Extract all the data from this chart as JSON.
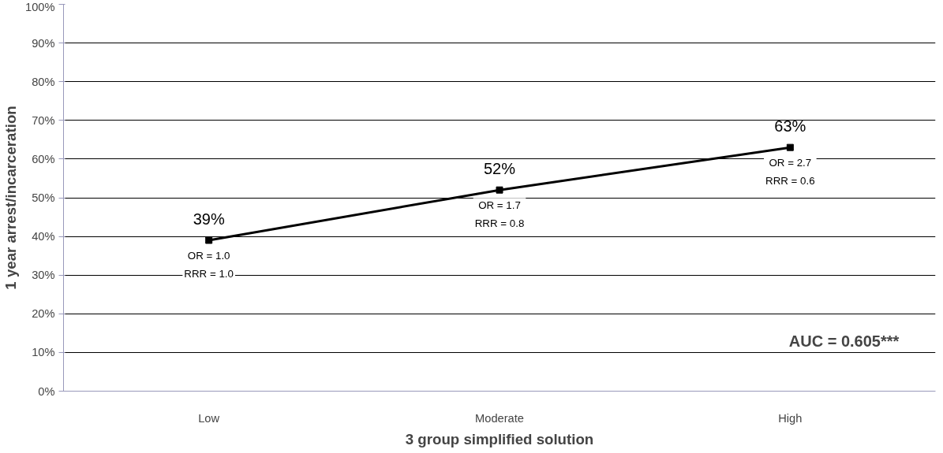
{
  "chart_data": {
    "type": "line",
    "xlabel": "3 group simplified solution",
    "ylabel": "1 year arrest/incarceration",
    "categories": [
      "Low",
      "Moderate",
      "High"
    ],
    "series": [
      {
        "color": "#000000",
        "values": [
          39,
          52,
          63
        ],
        "value_labels": [
          "39%",
          "52%",
          "63%"
        ]
      }
    ],
    "ylim": [
      0,
      100
    ],
    "yticks": [
      {
        "value": 0,
        "label": "0%"
      },
      {
        "value": 10,
        "label": "10%"
      },
      {
        "value": 20,
        "label": "20%"
      },
      {
        "value": 30,
        "label": "30%"
      },
      {
        "value": 40,
        "label": "40%"
      },
      {
        "value": 50,
        "label": "50%"
      },
      {
        "value": 60,
        "label": "60%"
      },
      {
        "value": 70,
        "label": "70%"
      },
      {
        "value": 80,
        "label": "80%"
      },
      {
        "value": 90,
        "label": "90%"
      },
      {
        "value": 100,
        "label": "100%"
      }
    ],
    "grid": "y",
    "marker": "square",
    "line_style": "solid",
    "annotations": [
      {
        "text": "OR = 1.0\nRRR = 1.0",
        "x": "Low",
        "y": 39
      },
      {
        "text": "OR = 1.7\nRRR = 0.8",
        "x": "Moderate",
        "y": 52
      },
      {
        "text": "OR = 2.7\nRRR = 0.6",
        "x": "High",
        "y": 63
      },
      "AUC = 0.605***"
    ]
  }
}
